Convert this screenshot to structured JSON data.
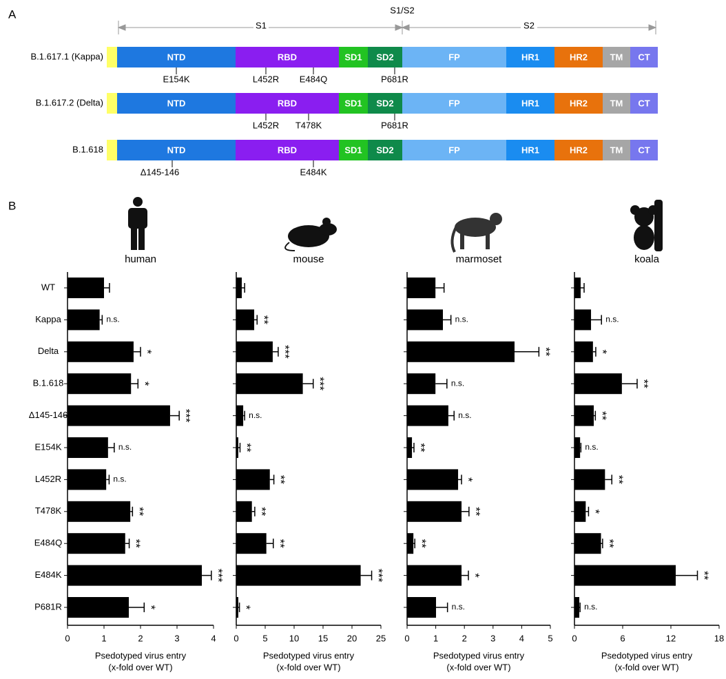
{
  "panel_a": {
    "label": "A",
    "regions": [
      "S1",
      "S1/S2",
      "S2"
    ],
    "domains": [
      {
        "label": null,
        "color": "#ffff66"
      },
      {
        "label": "NTD",
        "color": "#1e78e0"
      },
      {
        "label": "RBD",
        "color": "#8a1ef0"
      },
      {
        "label": "SD1",
        "color": "#22c322"
      },
      {
        "label": "SD2",
        "color": "#0f8a4a"
      },
      {
        "label": "FP",
        "color": "#6cb4f5"
      },
      {
        "label": "HR1",
        "color": "#1a8cf0"
      },
      {
        "label": "HR2",
        "color": "#e8720c"
      },
      {
        "label": "TM",
        "color": "#a6a6a6"
      },
      {
        "label": "CT",
        "color": "#7777ee"
      }
    ],
    "variants": [
      {
        "name": "B.1.617.1 (Kappa)",
        "mutations": [
          "E154K",
          "L452R",
          "E484Q",
          "P681R"
        ]
      },
      {
        "name": "B.1.617.2 (Delta)",
        "mutations": [
          "L452R",
          "T478K",
          "P681R"
        ]
      },
      {
        "name": "B.1.618",
        "mutations": [
          "Δ145-146",
          "E484K"
        ]
      }
    ]
  },
  "panel_b_label": "B",
  "chart_data": [
    {
      "type": "bar",
      "orientation": "horizontal",
      "title": "human",
      "color": "#000000",
      "categories": [
        "WT",
        "Kappa",
        "Delta",
        "B.1.618",
        "Δ145-146",
        "E154K",
        "L452R",
        "T478K",
        "E484Q",
        "E484K",
        "P681R"
      ],
      "values": [
        1.0,
        0.88,
        1.81,
        1.74,
        2.81,
        1.11,
        1.06,
        1.72,
        1.58,
        3.68,
        1.68
      ],
      "errors": [
        0.15,
        0.07,
        0.19,
        0.19,
        0.25,
        0.17,
        0.08,
        0.06,
        0.11,
        0.26,
        0.42
      ],
      "significance": [
        null,
        "n.s.",
        "*",
        "*",
        "***",
        "n.s.",
        "n.s.",
        "**",
        "**",
        "***",
        "*"
      ],
      "xlim": [
        0,
        4
      ],
      "xticks": [
        0,
        1,
        2,
        3,
        4
      ],
      "xlabel": [
        "Psedotyped virus entry",
        "(x-fold over WT)"
      ]
    },
    {
      "type": "bar",
      "orientation": "horizontal",
      "title": "mouse",
      "color": "#000000",
      "values": [
        0.95,
        3.1,
        6.3,
        11.5,
        1.2,
        0.35,
        5.8,
        2.7,
        5.2,
        21.5,
        0.35
      ],
      "errors": [
        0.5,
        0.5,
        0.95,
        1.8,
        0.25,
        0.3,
        0.7,
        0.5,
        1.2,
        1.9,
        0.2
      ],
      "significance": [
        null,
        "**",
        "***",
        "***",
        "n.s.",
        "**",
        "**",
        "**",
        "**",
        "***",
        "*"
      ],
      "xlim": [
        0,
        25
      ],
      "xticks": [
        0,
        5,
        10,
        15,
        20,
        25
      ],
      "xlabel": [
        "Psedotyped virus entry",
        "(x-fold over WT)"
      ]
    },
    {
      "type": "bar",
      "orientation": "horizontal",
      "title": "marmoset",
      "color": "#000000",
      "values": [
        0.99,
        1.25,
        3.75,
        0.99,
        1.44,
        0.17,
        1.78,
        1.9,
        0.22,
        1.9,
        1.01
      ],
      "errors": [
        0.3,
        0.28,
        0.85,
        0.4,
        0.2,
        0.07,
        0.12,
        0.26,
        0.05,
        0.24,
        0.4
      ],
      "significance": [
        null,
        "n.s.",
        "**",
        "n.s.",
        "n.s.",
        "**",
        "*",
        "**",
        "**",
        "*",
        "n.s."
      ],
      "xlim": [
        0,
        5
      ],
      "xticks": [
        0,
        1,
        2,
        3,
        4,
        5
      ],
      "xlabel": [
        "Psedotyped virus entry",
        "(x-fold over WT)"
      ]
    },
    {
      "type": "bar",
      "orientation": "horizontal",
      "title": "koala",
      "color": "#000000",
      "values": [
        0.77,
        2.06,
        2.3,
        5.9,
        2.4,
        0.7,
        3.8,
        1.4,
        3.3,
        12.6,
        0.6
      ],
      "errors": [
        0.43,
        1.3,
        0.35,
        1.9,
        0.2,
        0.1,
        0.85,
        0.35,
        0.2,
        2.7,
        0.1
      ],
      "significance": [
        null,
        "n.s.",
        "*",
        "**",
        "**",
        "n.s.",
        "**",
        "*",
        "**",
        "**",
        "n.s."
      ],
      "xlim": [
        0,
        18
      ],
      "xticks": [
        0,
        6,
        12,
        18
      ],
      "xlabel": [
        "Psedotyped virus entry",
        "(x-fold over WT)"
      ]
    }
  ]
}
